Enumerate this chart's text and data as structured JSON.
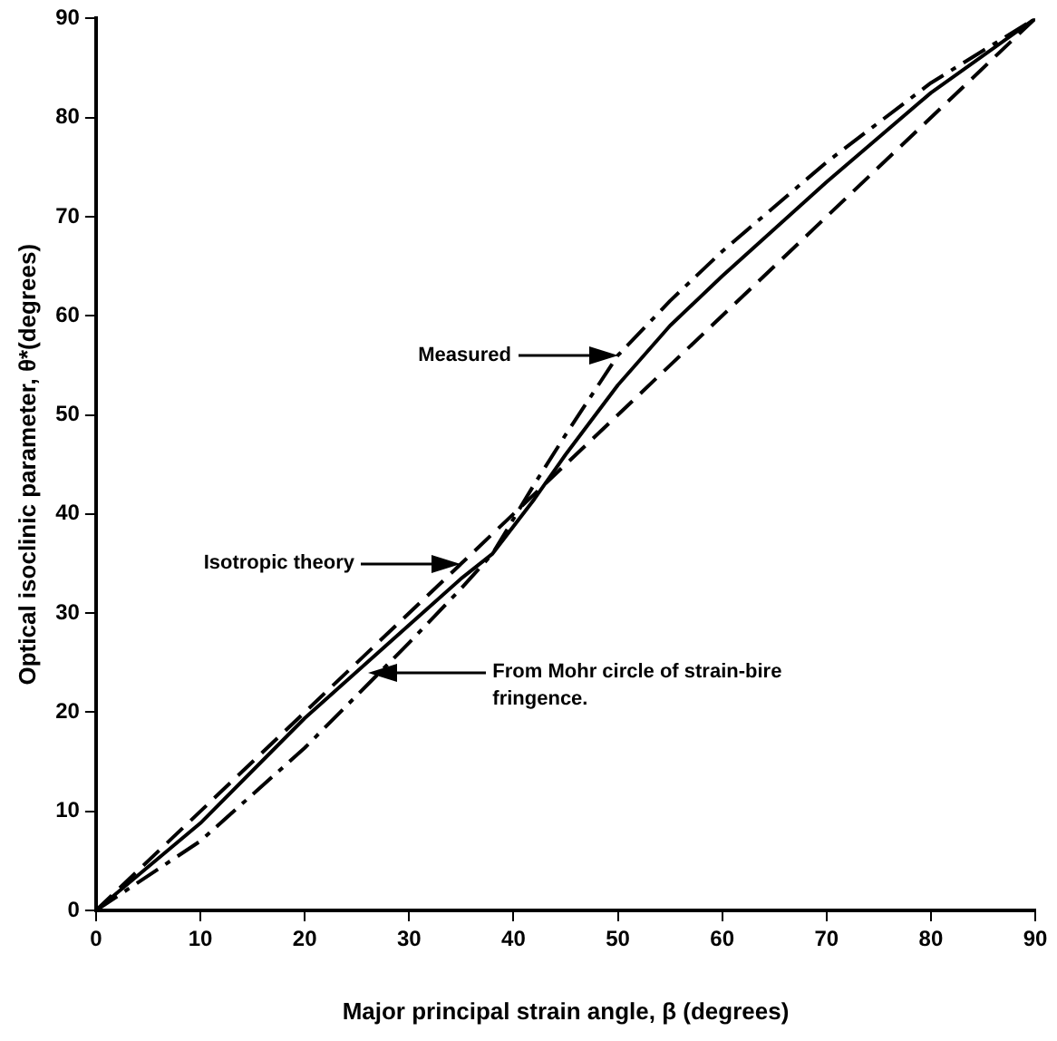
{
  "chart_data": {
    "type": "line",
    "xlabel": "Major principal strain angle, β (degrees)",
    "ylabel": "Optical isoclinic parameter, θ*(degrees)",
    "xlim": [
      0,
      90
    ],
    "ylim": [
      0,
      90
    ],
    "xticks": [
      0,
      10,
      20,
      30,
      40,
      50,
      60,
      70,
      80,
      90
    ],
    "yticks": [
      0,
      10,
      20,
      30,
      40,
      50,
      60,
      70,
      80,
      90
    ],
    "grid": false,
    "legend": false,
    "marker": "none",
    "series": [
      {
        "color": "#000000",
        "line_style": "dashed",
        "x": [
          0,
          90
        ],
        "values": [
          0,
          90
        ]
      },
      {
        "color": "#000000",
        "line_style": "dashdot",
        "x": [
          0,
          10,
          20,
          30,
          35,
          38,
          42,
          45,
          50,
          55,
          60,
          70,
          80,
          90
        ],
        "values": [
          0,
          7,
          16.4,
          27,
          32.5,
          36,
          43,
          48,
          56,
          61.5,
          66.5,
          75.5,
          83.5,
          90
        ]
      },
      {
        "color": "#000000",
        "line_style": "solid",
        "x": [
          0,
          10,
          20,
          30,
          35,
          38,
          42,
          45,
          50,
          55,
          60,
          70,
          80,
          90
        ],
        "values": [
          0,
          8.8,
          19.4,
          28.8,
          33.5,
          36,
          41.5,
          46,
          53,
          59,
          64,
          73.5,
          82.5,
          90
        ]
      }
    ],
    "annotations": [
      "Measured",
      "Isotropic theory",
      "From Mohr circle of strain-bire fringence."
    ]
  }
}
